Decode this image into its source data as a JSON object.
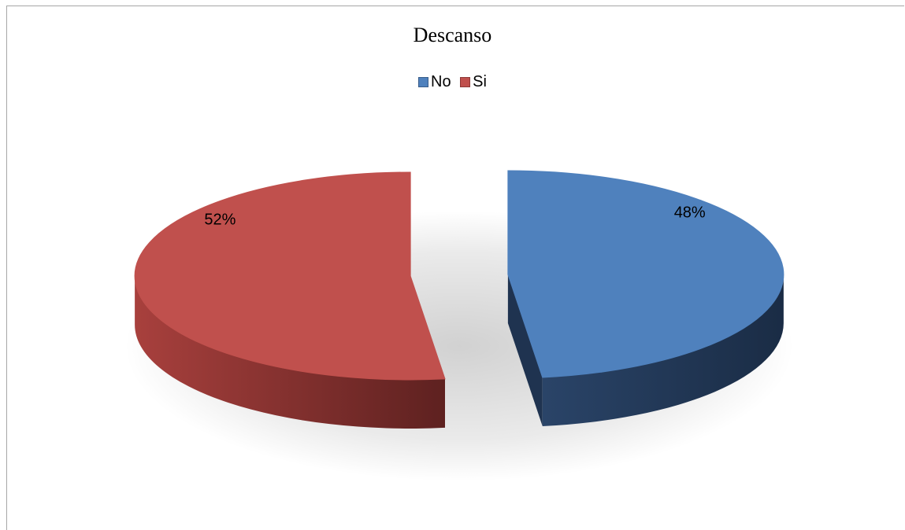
{
  "chart_data": {
    "type": "pie",
    "title": "Descanso",
    "legend_position": "top",
    "series": [
      {
        "name": "No",
        "value": 48,
        "label": "48%",
        "color": "#4f81bd",
        "side_color": "#1f3350"
      },
      {
        "name": "Si",
        "value": 52,
        "label": "52%",
        "color": "#c0504d",
        "side_color": "#7a2b29"
      }
    ]
  }
}
